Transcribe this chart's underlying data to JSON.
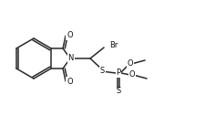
{
  "bg_color": "#ffffff",
  "line_color": "#2a2a2a",
  "line_width": 1.1,
  "font_size": 6.0,
  "font_color": "#111111",
  "atoms": {
    "N_label": "N",
    "O_top": "O",
    "O_bot": "O",
    "Br_label": "Br",
    "S1_label": "S",
    "P_label": "P",
    "S2_label": "S",
    "O1_label": "O",
    "O2_label": "O"
  },
  "scale": 1.0
}
